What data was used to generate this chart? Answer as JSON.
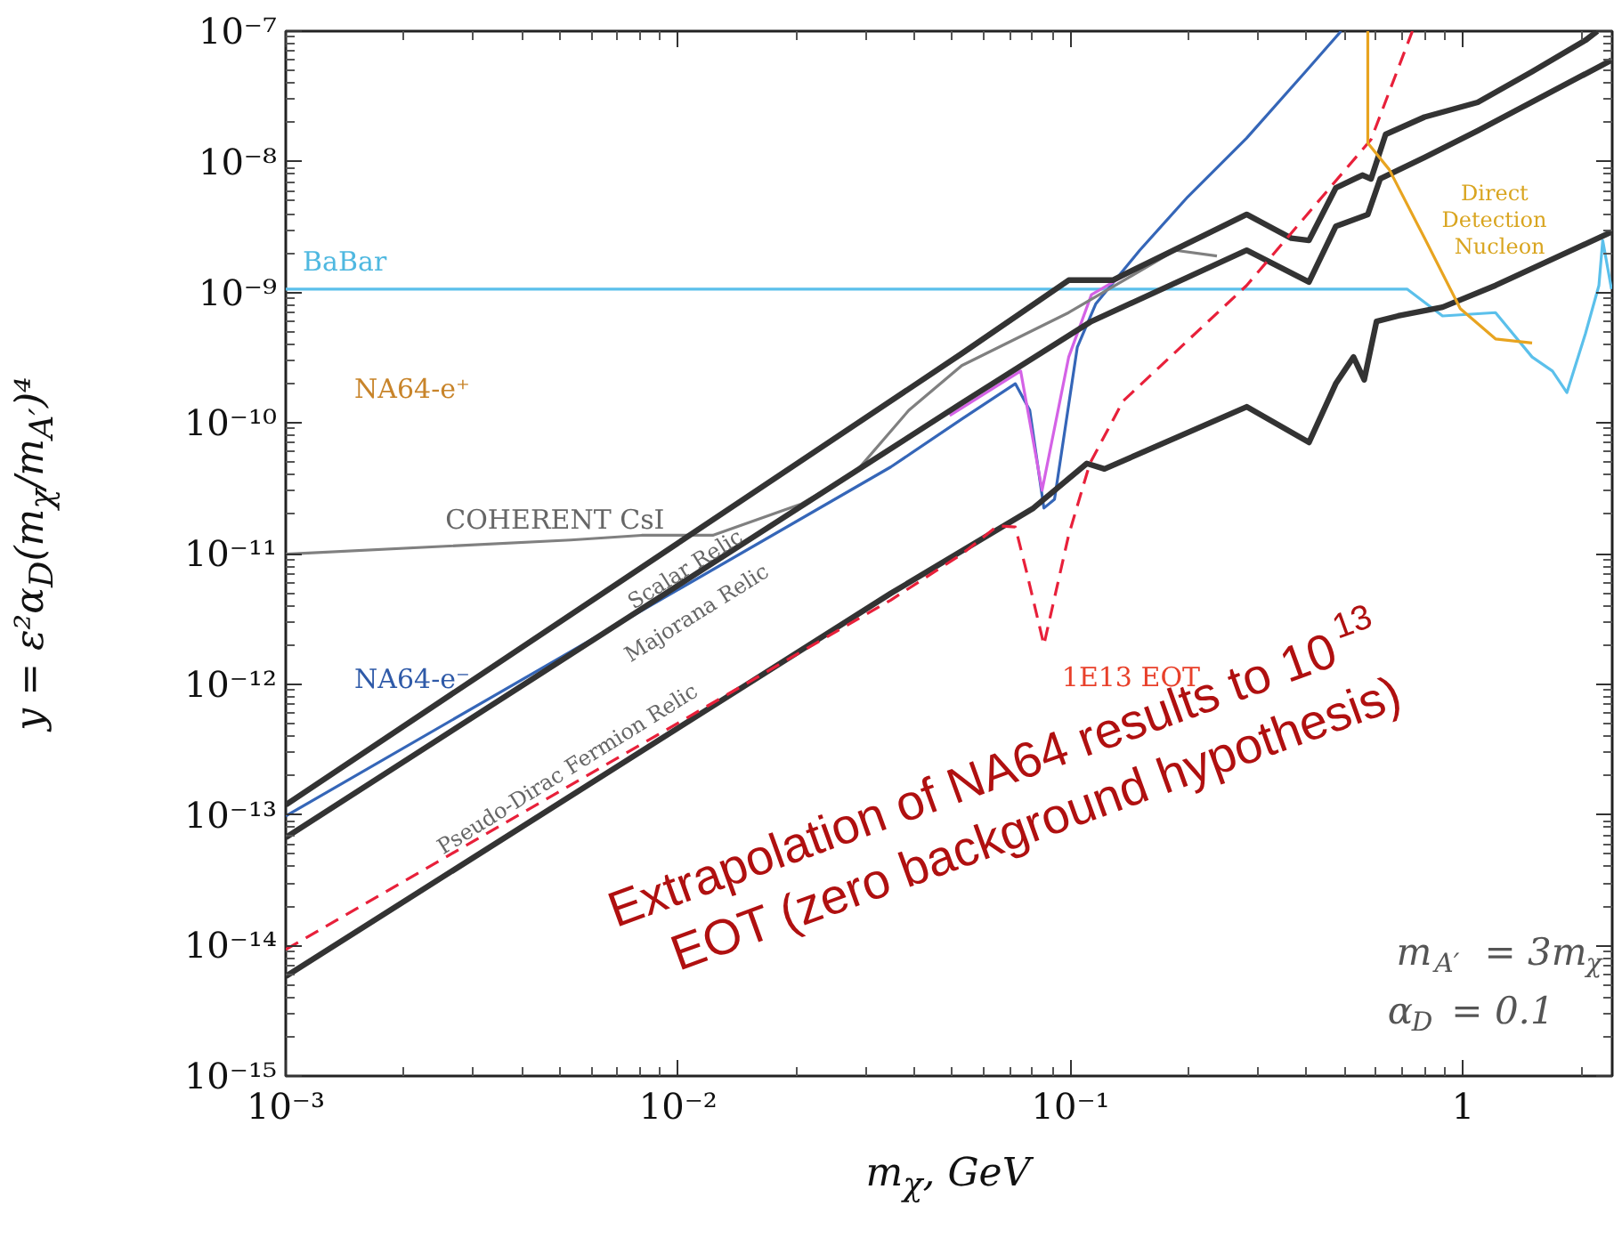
{
  "chart_data": {
    "type": "line",
    "xlabel": "m$_{χ}$, GeV",
    "ylabel": "y = ε²α$_{D}$(m$_{χ}$/m$_{A′}$)⁴",
    "log": "xy",
    "line_style": "solid",
    "xlim": [
      0.001,
      2.4
    ],
    "ylim": [
      1e-15,
      1e-07
    ],
    "xticks": [
      {
        "value": 0.001,
        "label": "10⁻³"
      },
      {
        "value": 0.01,
        "label": "10⁻²"
      },
      {
        "value": 0.1,
        "label": "10⁻¹"
      },
      1
    ],
    "yticks": [
      {
        "value": 1e-15,
        "label": "10⁻¹⁵"
      },
      {
        "value": 1e-14,
        "label": "10⁻¹⁴"
      },
      {
        "value": 1e-13,
        "label": "10⁻¹³"
      },
      {
        "value": 1e-12,
        "label": "10⁻¹²"
      },
      {
        "value": 1e-11,
        "label": "10⁻¹¹"
      },
      {
        "value": 1e-10,
        "label": "10⁻¹⁰"
      },
      {
        "value": 1e-09,
        "label": "10⁻⁹"
      },
      {
        "value": 1e-08,
        "label": "10⁻⁸"
      },
      {
        "value": 1e-07,
        "label": "10⁻⁷"
      }
    ],
    "series": [
      {
        "color": "#5bc0eb",
        "x": [
          0.001,
          0.72,
          0.887,
          1.21,
          1.5,
          1.69,
          1.84,
          2.05,
          2.22,
          2.27,
          2.39
        ],
        "values": [
          1.06e-09,
          1.06e-09,
          6.6e-10,
          7e-10,
          3.2e-10,
          2.5e-10,
          1.71e-10,
          4.8e-10,
          1.13e-09,
          2.5e-09,
          1.06e-09
        ]
      },
      {
        "color": "#3566b8",
        "x": [
          0.001,
          0.0348,
          0.0528,
          0.0723,
          0.0787,
          0.0855,
          0.091,
          0.104,
          0.116,
          0.15,
          0.199,
          0.281,
          0.397,
          0.489
        ],
        "values": [
          9.8e-14,
          4.6e-11,
          1.07e-10,
          2e-10,
          1.25e-10,
          2.23e-11,
          2.6e-11,
          3.8e-10,
          8.2e-10,
          2.1e-09,
          5.4e-09,
          1.52e-08,
          4.9e-08,
          1e-07
        ]
      },
      {
        "color": "#d462e6",
        "x": [
          0.0492,
          0.0746,
          0.0846,
          0.0989,
          0.113,
          0.143
        ],
        "values": [
          1.14e-10,
          2.5e-10,
          3.05e-11,
          3.2e-10,
          9.6e-10,
          1.45e-09
        ]
      },
      {
        "color": "#808080",
        "x": [
          0.001,
          0.00532,
          0.00807,
          0.01225,
          0.0206,
          0.0283,
          0.0387,
          0.0528,
          0.0989,
          0.185,
          0.236
        ],
        "values": [
          9.9e-12,
          1.27e-11,
          1.38e-11,
          1.38e-11,
          2.4e-11,
          4.2e-11,
          1.25e-10,
          2.75e-10,
          7e-10,
          2.1e-09,
          1.9e-09
        ]
      },
      {
        "color": "#333333",
        "x": [
          0.001,
          0.0528,
          0.0989,
          0.128,
          0.281,
          0.365,
          0.405,
          0.474,
          0.554,
          0.583,
          0.635,
          0.798,
          1.09,
          1.5,
          2.05,
          2.2
        ],
        "values": [
          1.19e-13,
          3.4e-10,
          1.24e-09,
          1.24e-09,
          3.95e-09,
          2.6e-09,
          2.5e-09,
          6.3e-09,
          7.9e-09,
          7.4e-09,
          1.62e-08,
          2.2e-08,
          2.85e-08,
          4.9e-08,
          8.5e-08,
          1e-07
        ]
      },
      {
        "color": "#333333",
        "x": [
          0.001,
          0.0528,
          0.113,
          0.281,
          0.405,
          0.474,
          0.572,
          0.615,
          0.798,
          1.09,
          2.39
        ],
        "values": [
          6.7e-14,
          1.42e-10,
          6e-10,
          2.1e-09,
          1.2e-09,
          3.2e-09,
          3.95e-09,
          7.4e-09,
          1.08e-08,
          1.73e-08,
          6e-08
        ]
      },
      {
        "color": "#333333",
        "x": [
          0.001,
          0.0348,
          0.0804,
          0.11,
          0.122,
          0.281,
          0.405,
          0.474,
          0.526,
          0.56,
          0.602,
          0.683,
          0.887,
          1.21,
          2.39
        ],
        "values": [
          5.8e-15,
          4.95e-12,
          2.23e-11,
          4.9e-11,
          4.45e-11,
          1.33e-10,
          7.1e-11,
          2e-10,
          3.2e-10,
          2.14e-10,
          6e-10,
          6.6e-10,
          7.7e-10,
          1.13e-09,
          2.9e-09
        ]
      },
      {
        "color": "#e8203a",
        "line_style": "dashed",
        "x": [
          0.001,
          0.0348,
          0.0528,
          0.0652,
          0.0723,
          0.0771,
          0.0855,
          0.0989,
          0.112,
          0.136,
          0.281,
          0.583,
          0.743
        ],
        "values": [
          9.3e-15,
          4.4e-12,
          9.9e-12,
          1.63e-11,
          1.6e-11,
          7.4e-12,
          2e-12,
          1.39e-11,
          4.9e-11,
          1.47e-10,
          1.13e-09,
          1.48e-08,
          1e-07
        ]
      },
      {
        "color": "#e8a420",
        "x": [
          0.572,
          0.572,
          0.649,
          0.798,
          0.984,
          1.21,
          1.5
        ],
        "values": [
          1e-07,
          1.39e-08,
          8.7e-09,
          2.6e-09,
          7.5e-10,
          4.4e-10,
          4.1e-10
        ]
      }
    ],
    "annotations": [
      "BaBar",
      "NA64-e⁺",
      "COHERENT CsI",
      "Scalar Relic",
      "Majorana Relic",
      "Pseudo-Dirac Fermion Relic",
      "NA64-e⁻",
      "1E13 EOT",
      "Direct\nDetection\nNucleon",
      "m$_{A′}$ = 3m$_{χ}$",
      "α$_{D}$ = 0.1",
      "Extrapolation of NA64 results to 10$^{13}$\nEOT (zero background hypothesis)"
    ]
  }
}
